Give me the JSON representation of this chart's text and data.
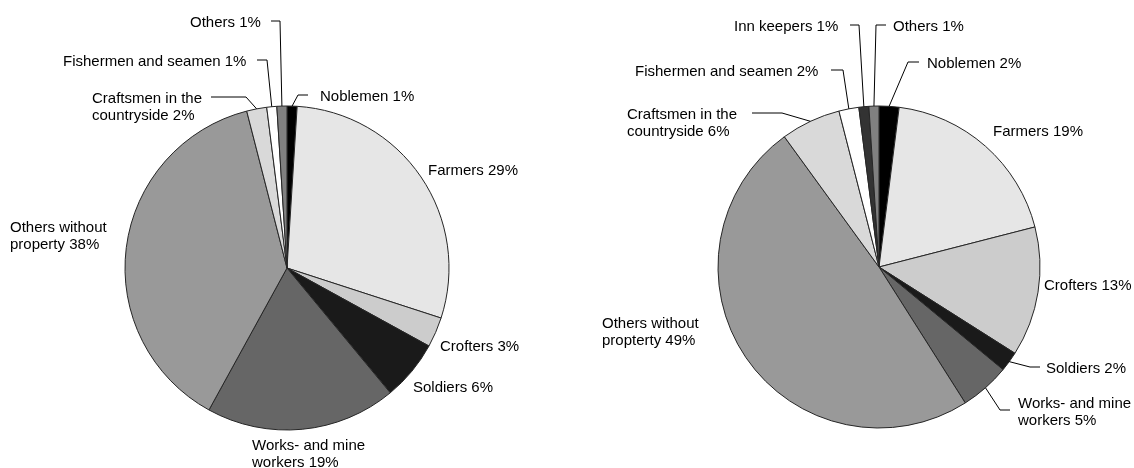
{
  "chart_data": [
    {
      "type": "pie",
      "categories": [
        "Noblemen",
        "Farmers",
        "Crofters",
        "Soldiers",
        "Works- and mine workers",
        "Others without property",
        "Craftsmen in the countryside",
        "Fishermen and seamen",
        "Others"
      ],
      "values": [
        1,
        29,
        3,
        6,
        19,
        38,
        2,
        1,
        1
      ],
      "colors": [
        "#000000",
        "#e6e6e6",
        "#cccccc",
        "#1a1a1a",
        "#666666",
        "#999999",
        "#d9d9d9",
        "#ffffff",
        "#808080"
      ],
      "value_labels": [
        "1%",
        "29%",
        "3%",
        "6%",
        "19%",
        "38%",
        "2%",
        "1%",
        "1%"
      ]
    },
    {
      "type": "pie",
      "categories": [
        "Noblemen",
        "Farmers",
        "Crofters",
        "Soldiers",
        "Works- and mine workers",
        "Others without propterty",
        "Craftsmen in the countryside",
        "Fishermen and seamen",
        "Inn keepers",
        "Others"
      ],
      "values": [
        2,
        19,
        13,
        2,
        5,
        49,
        6,
        2,
        1,
        1
      ],
      "colors": [
        "#000000",
        "#e6e6e6",
        "#cccccc",
        "#1a1a1a",
        "#666666",
        "#999999",
        "#d9d9d9",
        "#ffffff",
        "#333333",
        "#808080"
      ],
      "value_labels": [
        "2%",
        "19%",
        "13%",
        "2%",
        "5%",
        "49%",
        "6%",
        "2%",
        "1%",
        "1%"
      ]
    }
  ]
}
